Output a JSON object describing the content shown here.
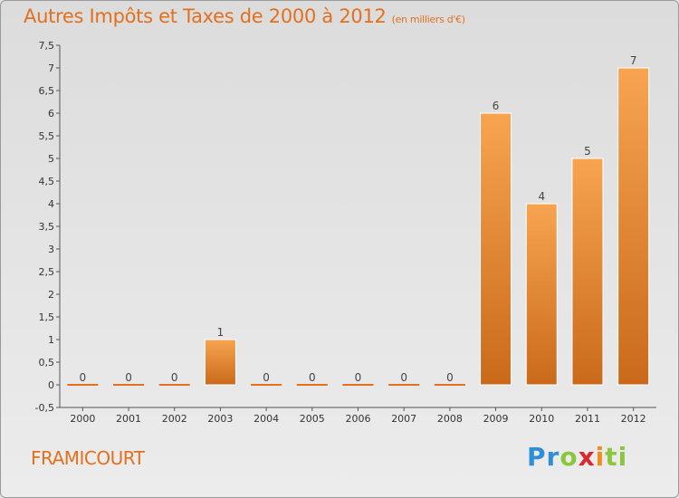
{
  "header": {
    "title": "Autres Impôts et Taxes de 2000 à 2012",
    "subtitle": "(en milliers d'€)"
  },
  "footer": {
    "commune": "FRAMICOURT",
    "logo": [
      "Pr",
      "o",
      "x",
      "i",
      "ti"
    ]
  },
  "colors": {
    "accent": "#e2701f",
    "bar_top": "#f7a451",
    "bar_bottom": "#c96a1a"
  },
  "chart_data": {
    "type": "bar",
    "title": "Autres Impôts et Taxes de 2000 à 2012",
    "subtitle": "(en milliers d'€)",
    "xlabel": "",
    "ylabel": "",
    "categories": [
      "2000",
      "2001",
      "2002",
      "2003",
      "2004",
      "2005",
      "2006",
      "2007",
      "2008",
      "2009",
      "2010",
      "2011",
      "2012"
    ],
    "values": [
      0,
      0,
      0,
      1,
      0,
      0,
      0,
      0,
      0,
      6,
      4,
      5,
      7
    ],
    "ylim": [
      -0.5,
      7.5
    ],
    "yticks": [
      "-0,5",
      "0",
      "0,5",
      "1",
      "1,5",
      "2",
      "2,5",
      "3",
      "3,5",
      "4",
      "4,5",
      "5",
      "5,5",
      "6",
      "6,5",
      "7",
      "7,5"
    ],
    "grid": false,
    "legend": "none"
  }
}
